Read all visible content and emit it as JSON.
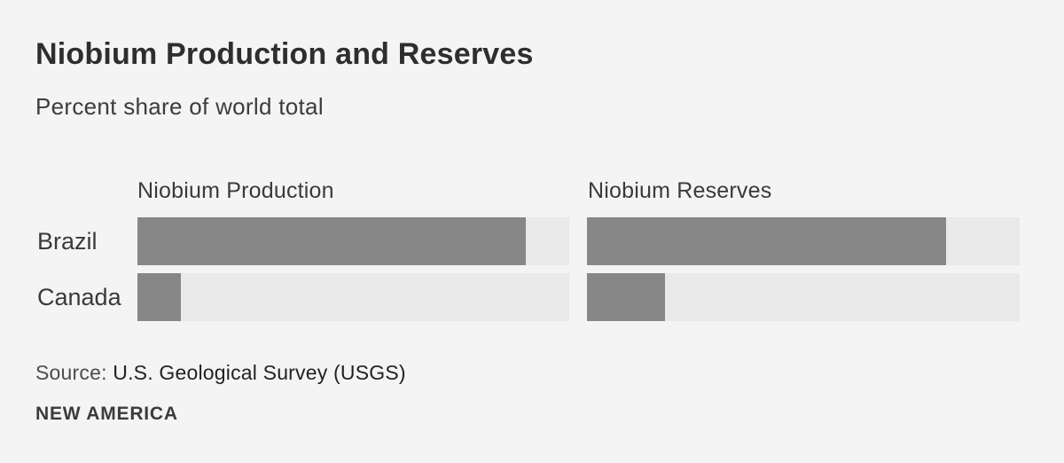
{
  "page": {
    "background_color": "#f4f4f4"
  },
  "header": {
    "title": "Niobium Production and Reserves",
    "subtitle": "Percent share of world total"
  },
  "source": {
    "label": "Source:",
    "text": "U.S. Geological Survey (USGS)"
  },
  "branding": "NEW AMERICA",
  "chart_data": {
    "type": "bar",
    "orientation": "horizontal",
    "title": "Niobium Production and Reserves",
    "subtitle": "Percent share of world total",
    "unit": "percent share of world total",
    "categories": [
      "Brazil",
      "Canada"
    ],
    "series": [
      {
        "name": "Niobium Production",
        "values": [
          90,
          10
        ]
      },
      {
        "name": "Niobium Reserves",
        "values": [
          83,
          18
        ]
      }
    ],
    "xlim": [
      0,
      100
    ],
    "grid": false,
    "legend_position": "panel-headers-top",
    "bar_color": "#878787",
    "track_color": "#e9e9e9",
    "value_labels_shown": false
  }
}
